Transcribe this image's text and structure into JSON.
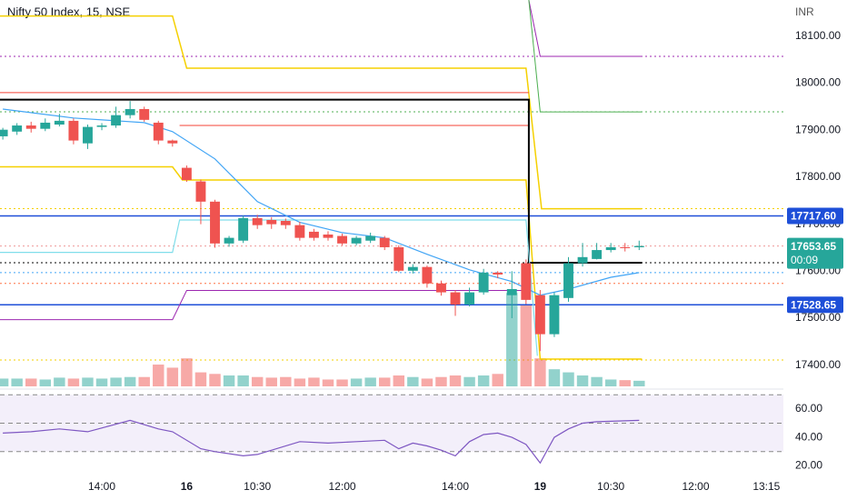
{
  "chart_data": {
    "type": "candlestick",
    "title": "Nifty 50 Index, 15, NSE",
    "currency": "INR",
    "up_color": "#26a69a",
    "down_color": "#ef5350",
    "open": [
      17887,
      17897,
      17910,
      17903,
      17912,
      17920,
      17872,
      17907,
      17910,
      17932,
      17945,
      17916,
      17878,
      17820,
      17791,
      17748,
      17659,
      17665,
      17713,
      17709,
      17707,
      17698,
      17684,
      17678,
      17675,
      17659,
      17665,
      17671,
      17651,
      17601,
      17609,
      17574,
      17555,
      17529,
      17555,
      17597,
      17549,
      17617,
      17549,
      17466,
      17543,
      17617,
      17626,
      17645,
      17651,
      17651
    ],
    "high": [
      17905,
      17915,
      17918,
      17925,
      17935,
      17925,
      17912,
      17915,
      17950,
      17962,
      17950,
      17920,
      17880,
      17825,
      17795,
      17752,
      17675,
      17718,
      17720,
      17715,
      17712,
      17705,
      17690,
      17685,
      17680,
      17675,
      17682,
      17675,
      17655,
      17615,
      17612,
      17580,
      17560,
      17565,
      17605,
      17600,
      17600,
      17625,
      17560,
      17555,
      17630,
      17660,
      17660,
      17660,
      17660,
      17665
    ],
    "low": [
      17880,
      17890,
      17895,
      17898,
      17908,
      17870,
      17860,
      17900,
      17905,
      17925,
      17918,
      17870,
      17865,
      17790,
      17700,
      17650,
      17652,
      17660,
      17690,
      17690,
      17690,
      17665,
      17665,
      17665,
      17655,
      17655,
      17660,
      17645,
      17598,
      17595,
      17565,
      17548,
      17505,
      17525,
      17550,
      17585,
      17500,
      17530,
      17430,
      17460,
      17535,
      17610,
      17625,
      17640,
      17642,
      17645
    ],
    "close": [
      17901,
      17910,
      17903,
      17916,
      17920,
      17878,
      17907,
      17910,
      17932,
      17945,
      17922,
      17878,
      17872,
      17794,
      17748,
      17659,
      17671,
      17713,
      17698,
      17700,
      17698,
      17671,
      17671,
      17671,
      17659,
      17671,
      17675,
      17651,
      17601,
      17609,
      17574,
      17555,
      17529,
      17555,
      17597,
      17593,
      17562,
      17539,
      17466,
      17549,
      17617,
      17630,
      17645,
      17651,
      17649,
      17653.65
    ],
    "volume": [
      25,
      25,
      25,
      22,
      28,
      25,
      28,
      25,
      28,
      30,
      30,
      70,
      60,
      90,
      45,
      40,
      35,
      35,
      30,
      28,
      30,
      25,
      28,
      22,
      22,
      25,
      28,
      28,
      35,
      30,
      25,
      30,
      35,
      30,
      35,
      40,
      300,
      260,
      90,
      55,
      45,
      35,
      30,
      22,
      20,
      18
    ],
    "volume_up_color": "rgba(38,166,154,0.5)",
    "volume_down_color": "rgba(239,83,80,0.5)",
    "vlim": [
      0,
      400
    ],
    "xlim": [
      -0.2,
      55.2
    ],
    "xticks": [
      {
        "value": 7,
        "label": "14:00"
      },
      {
        "value": 13,
        "label": "16"
      },
      {
        "value": 18,
        "label": "10:30"
      },
      {
        "value": 24,
        "label": "12:00"
      },
      {
        "value": 32,
        "label": "14:00"
      },
      {
        "value": 38,
        "label": "19"
      },
      {
        "value": 43,
        "label": "10:30"
      },
      {
        "value": 49,
        "label": "12:00"
      },
      {
        "value": 54,
        "label": "13:15"
      }
    ],
    "ylim": [
      17355,
      18177
    ],
    "yticks": [
      {
        "value": 17400,
        "label": "17400.00"
      },
      {
        "value": 17500,
        "label": "17500.00"
      },
      {
        "value": 17600,
        "label": "17600.00"
      },
      {
        "value": 17700,
        "label": "17700.00"
      },
      {
        "value": 17800,
        "label": "17800.00"
      },
      {
        "value": 17900,
        "label": "17900.00"
      },
      {
        "value": 18000,
        "label": "18000.00"
      },
      {
        "value": 18100,
        "label": "18100.00"
      }
    ],
    "overlays": [
      {
        "color": "#f5d000",
        "width": 1.5,
        "x": [
          -0.2,
          12,
          13,
          37,
          38.1,
          45.2
        ],
        "values": [
          18143,
          18143,
          18032,
          18032,
          17733,
          17733
        ]
      },
      {
        "color": "#f5d000",
        "width": 1.5,
        "x": [
          -0.2,
          12,
          12.7,
          37,
          38,
          45.2
        ],
        "values": [
          17822,
          17822,
          17794,
          17794,
          17413,
          17413
        ]
      },
      {
        "color": "#9c27b0",
        "width": 1,
        "x": [
          -0.2,
          12,
          13,
          37.2
        ],
        "values": [
          17497,
          17497,
          17559,
          17559
        ]
      },
      {
        "color": "#9c27b0",
        "width": 1,
        "x": [
          37.2,
          38,
          45.2
        ],
        "values": [
          18177,
          18057,
          18057
        ]
      },
      {
        "color": "#4caf50",
        "width": 1,
        "x": [
          37.2,
          38,
          45.2
        ],
        "values": [
          18177,
          17939,
          17939
        ]
      },
      {
        "color": "#f44336",
        "width": 1,
        "x": [
          12.5,
          37.2
        ],
        "values": [
          17980,
          17980
        ]
      },
      {
        "color": "#f44336",
        "width": 1,
        "x": [
          12.5,
          37.2
        ],
        "values": [
          17910,
          17910
        ]
      },
      {
        "color": "#f44336",
        "width": 1,
        "x": [
          -0.2,
          12.5
        ],
        "values": [
          17980,
          17980
        ]
      },
      {
        "color": "#000000",
        "width": 2,
        "x": [
          -0.2,
          37.2,
          37.2,
          45.2
        ],
        "values": [
          17965,
          17965,
          17618,
          17618
        ]
      },
      {
        "color": "#80deea",
        "width": 1.2,
        "x": [
          -0.2,
          12,
          12.5,
          37,
          37.8
        ],
        "values": [
          17640,
          17640,
          17709,
          17709,
          17420
        ]
      },
      {
        "color": "#42a5f5",
        "width": 1.2,
        "x": [
          0,
          5,
          10,
          12,
          15,
          18,
          21,
          24,
          27,
          30,
          33,
          36,
          38,
          40,
          43,
          45
        ],
        "values": [
          17945,
          17926,
          17916,
          17897,
          17839,
          17748,
          17704,
          17682,
          17671,
          17636,
          17603,
          17578,
          17549,
          17562,
          17587,
          17597
        ]
      }
    ],
    "hlines": [
      {
        "value": 17717.6,
        "color": "#1e4fd8",
        "dash": false
      },
      {
        "value": 17528.65,
        "color": "#1e4fd8",
        "dash": false
      },
      {
        "value": 17618,
        "color": "#000000",
        "dash": true
      },
      {
        "value": 17597,
        "color": "#42a5f5",
        "dash": true
      },
      {
        "value": 17574,
        "color": "#ff7043",
        "dash": true
      },
      {
        "value": 17411,
        "color": "#f5d000",
        "dash": true
      },
      {
        "value": 18057,
        "color": "#9c27b0",
        "dash": true
      },
      {
        "value": 17939,
        "color": "#4caf50",
        "dash": true
      },
      {
        "value": 17733,
        "color": "#f5d000",
        "dash": true
      },
      {
        "value": 17653.65,
        "color": "#ef9a9a",
        "dash": true
      }
    ],
    "price_labels": [
      {
        "value": 17717.6,
        "label": "17717.60",
        "color": "#1e4fd8"
      },
      {
        "value": 17653.65,
        "label": "17653.65",
        "color": "#26a69a"
      },
      {
        "value": 17528.65,
        "label": "17528.65",
        "color": "#1e4fd8"
      }
    ],
    "countdown": "00:09",
    "rsi": {
      "color": "#7e57c2",
      "x": [
        0,
        2,
        4,
        6,
        9,
        11,
        12,
        14,
        15,
        17,
        18,
        21,
        23,
        25,
        27,
        28,
        29,
        30,
        31,
        32,
        33,
        34,
        35,
        36,
        37,
        38,
        39,
        40,
        41,
        42,
        45
      ],
      "values": [
        43,
        44,
        46,
        44,
        52,
        46,
        44,
        32,
        30,
        27,
        28,
        37,
        36,
        37,
        38,
        32,
        36,
        34,
        31,
        27,
        37,
        42,
        43,
        40,
        35,
        22,
        40,
        46,
        50,
        51,
        52
      ],
      "ylim": [
        10,
        74
      ],
      "yticks": [
        {
          "value": 20,
          "label": "20.00"
        },
        {
          "value": 40,
          "label": "40.00"
        },
        {
          "value": 60,
          "label": "60.00"
        }
      ],
      "band": [
        30,
        70
      ],
      "levels": [
        30,
        50,
        70
      ]
    }
  }
}
